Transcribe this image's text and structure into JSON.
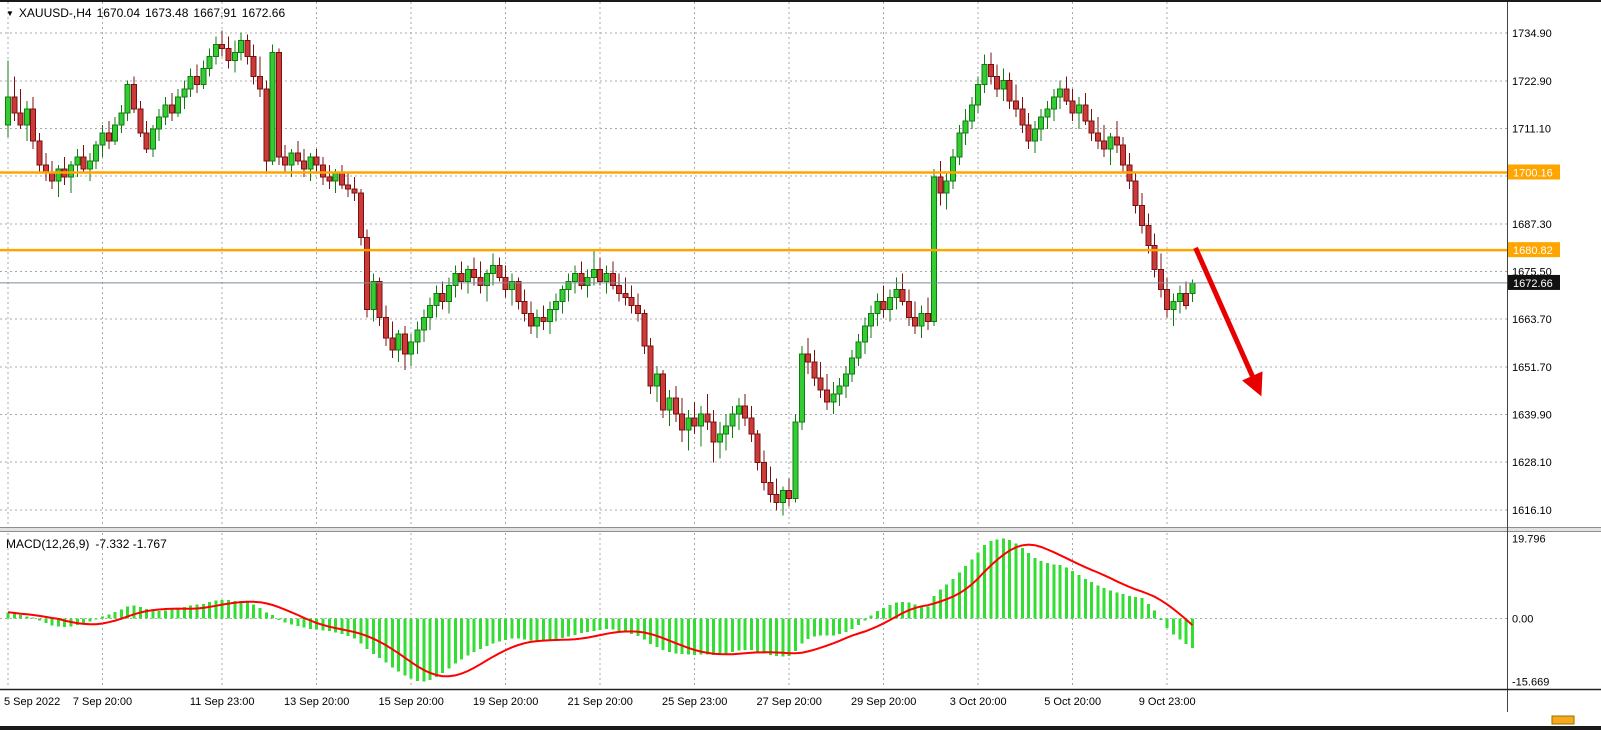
{
  "header": {
    "symbol_timeframe": "XAUUSD-,H4",
    "open": "1670.04",
    "high": "1673.48",
    "low": "1667.91",
    "close": "1672.66"
  },
  "macd_header": {
    "name": "MACD(12,26,9)",
    "values": "-7.332 -1.767"
  },
  "colors": {
    "bull_fill": "#33cc33",
    "bull_stroke": "#117a11",
    "bear_fill": "#cc3a3a",
    "bear_stroke": "#7a1111",
    "macd_histogram": "#33dd33",
    "macd_signal": "#ff0000",
    "hline": "#ffa500",
    "current_price_line": "#7d8b97",
    "grid": "#a8a8a8",
    "arrow": "#e80000",
    "axis_text": "#000000",
    "label_box_dark": "#111111"
  },
  "chart_data": {
    "type": "candlestick",
    "symbol": "XAUUSD-",
    "timeframe": "H4",
    "last_ohlc": {
      "open": 1670.04,
      "high": 1673.48,
      "low": 1667.91,
      "close": 1672.66
    },
    "price_axis": {
      "max": 1742.6,
      "min": 1611.9,
      "grid_prices": [
        1734.9,
        1722.9,
        1711.1,
        1699.3,
        1687.3,
        1675.5,
        1663.7,
        1651.7,
        1639.9,
        1628.1,
        1616.1
      ],
      "axis_label_prices": [
        1734.9,
        1722.9,
        1711.1,
        1687.3,
        1675.5,
        1663.7,
        1651.7,
        1639.9,
        1628.1,
        1616.1
      ]
    },
    "time_axis": [
      {
        "index": 0,
        "label": "5 Sep 2022"
      },
      {
        "index": 15,
        "label": "7 Sep 20:00"
      },
      {
        "index": 34,
        "label": "11 Sep 23:00"
      },
      {
        "index": 49,
        "label": "13 Sep 20:00"
      },
      {
        "index": 64,
        "label": "15 Sep 20:00"
      },
      {
        "index": 79,
        "label": "19 Sep 20:00"
      },
      {
        "index": 94,
        "label": "21 Sep 20:00"
      },
      {
        "index": 109,
        "label": "25 Sep 23:00"
      },
      {
        "index": 124,
        "label": "27 Sep 20:00"
      },
      {
        "index": 139,
        "label": "29 Sep 20:00"
      },
      {
        "index": 154,
        "label": "3 Oct 20:00"
      },
      {
        "index": 169,
        "label": "5 Oct 20:00"
      },
      {
        "index": 184,
        "label": "9 Oct 23:00"
      }
    ],
    "horizontal_lines": [
      {
        "price": 1700.16,
        "label": "1700.16"
      },
      {
        "price": 1680.82,
        "label": "1680.82"
      }
    ],
    "current_price": {
      "price": 1672.66,
      "label": "1672.66"
    },
    "trend_arrow": {
      "from": {
        "index": 188.5,
        "price": 1681.4
      },
      "to": {
        "index": 198.5,
        "price": 1646.0
      }
    },
    "candles": [
      [
        1712,
        1728,
        1709,
        1719
      ],
      [
        1719,
        1724,
        1713,
        1715
      ],
      [
        1715,
        1721,
        1711,
        1712
      ],
      [
        1712,
        1718,
        1708,
        1716
      ],
      [
        1716,
        1719,
        1706,
        1708
      ],
      [
        1708,
        1710,
        1700,
        1702
      ],
      [
        1702,
        1705,
        1698,
        1700
      ],
      [
        1700,
        1703,
        1696,
        1698
      ],
      [
        1698,
        1702,
        1694,
        1701
      ],
      [
        1701,
        1704,
        1697,
        1699
      ],
      [
        1699,
        1703,
        1695,
        1702
      ],
      [
        1702,
        1706,
        1699,
        1704
      ],
      [
        1704,
        1707,
        1700,
        1701
      ],
      [
        1701,
        1705,
        1698,
        1703
      ],
      [
        1703,
        1708,
        1701,
        1707
      ],
      [
        1707,
        1712,
        1704,
        1710
      ],
      [
        1710,
        1713,
        1706,
        1708
      ],
      [
        1708,
        1714,
        1707,
        1712
      ],
      [
        1712,
        1717,
        1710,
        1715
      ],
      [
        1715,
        1723,
        1713,
        1722
      ],
      [
        1722,
        1724,
        1715,
        1716
      ],
      [
        1716,
        1718,
        1709,
        1710
      ],
      [
        1710,
        1713,
        1705,
        1706
      ],
      [
        1706,
        1712,
        1704,
        1711
      ],
      [
        1711,
        1716,
        1708,
        1714
      ],
      [
        1714,
        1719,
        1712,
        1717
      ],
      [
        1717,
        1720,
        1713,
        1715
      ],
      [
        1715,
        1721,
        1714,
        1719
      ],
      [
        1719,
        1723,
        1716,
        1721
      ],
      [
        1721,
        1726,
        1719,
        1724
      ],
      [
        1724,
        1727,
        1720,
        1722
      ],
      [
        1722,
        1728,
        1721,
        1726
      ],
      [
        1726,
        1731,
        1724,
        1729
      ],
      [
        1729,
        1734,
        1727,
        1732
      ],
      [
        1732,
        1735.5,
        1729,
        1731
      ],
      [
        1731,
        1734,
        1726,
        1728
      ],
      [
        1728,
        1733,
        1725,
        1730
      ],
      [
        1730,
        1735,
        1728,
        1733
      ],
      [
        1733,
        1734.5,
        1727,
        1729
      ],
      [
        1729,
        1732,
        1722,
        1724
      ],
      [
        1724,
        1729,
        1719,
        1721
      ],
      [
        1721,
        1723,
        1700,
        1703
      ],
      [
        1703,
        1732,
        1702,
        1730
      ],
      [
        1730,
        1731,
        1702,
        1704
      ],
      [
        1704,
        1707,
        1700,
        1702
      ],
      [
        1702,
        1706,
        1699,
        1705
      ],
      [
        1705,
        1708,
        1702,
        1703
      ],
      [
        1703,
        1706,
        1699,
        1701
      ],
      [
        1701,
        1705,
        1698,
        1704
      ],
      [
        1704,
        1706,
        1700,
        1702
      ],
      [
        1702,
        1704,
        1697,
        1699
      ],
      [
        1699,
        1702,
        1696,
        1698
      ],
      [
        1698,
        1701,
        1695,
        1700
      ],
      [
        1700,
        1702,
        1696,
        1697
      ],
      [
        1697,
        1700,
        1694,
        1696
      ],
      [
        1696,
        1699,
        1693,
        1695
      ],
      [
        1695,
        1696,
        1682,
        1684
      ],
      [
        1684,
        1686,
        1664,
        1666
      ],
      [
        1666,
        1675,
        1663,
        1673
      ],
      [
        1673,
        1674,
        1662,
        1664
      ],
      [
        1664,
        1667,
        1657,
        1659
      ],
      [
        1659,
        1663,
        1654,
        1656
      ],
      [
        1656,
        1661,
        1653,
        1660
      ],
      [
        1660,
        1662,
        1651,
        1655
      ],
      [
        1655,
        1660,
        1652,
        1658
      ],
      [
        1658,
        1663,
        1655,
        1661
      ],
      [
        1661,
        1666,
        1658,
        1664
      ],
      [
        1664,
        1669,
        1661,
        1667
      ],
      [
        1667,
        1672,
        1664,
        1670
      ],
      [
        1670,
        1673,
        1666,
        1668
      ],
      [
        1668,
        1674,
        1665,
        1672
      ],
      [
        1672,
        1677,
        1669,
        1675
      ],
      [
        1675,
        1678,
        1671,
        1673
      ],
      [
        1673,
        1677,
        1670,
        1676
      ],
      [
        1676,
        1679,
        1672,
        1674
      ],
      [
        1674,
        1678,
        1670,
        1672
      ],
      [
        1672,
        1676,
        1668,
        1675
      ],
      [
        1675,
        1680,
        1672,
        1677
      ],
      [
        1677,
        1679,
        1673,
        1674
      ],
      [
        1674,
        1677,
        1669,
        1671
      ],
      [
        1671,
        1675,
        1667,
        1673
      ],
      [
        1673,
        1674,
        1666,
        1668
      ],
      [
        1668,
        1671,
        1663,
        1665
      ],
      [
        1665,
        1668,
        1660,
        1662
      ],
      [
        1662,
        1666,
        1659,
        1664
      ],
      [
        1664,
        1667,
        1661,
        1663
      ],
      [
        1663,
        1668,
        1660,
        1666
      ],
      [
        1666,
        1670,
        1663,
        1668
      ],
      [
        1668,
        1672,
        1665,
        1671
      ],
      [
        1671,
        1675,
        1668,
        1673
      ],
      [
        1673,
        1677,
        1670,
        1675
      ],
      [
        1675,
        1678,
        1671,
        1672
      ],
      [
        1672,
        1676,
        1669,
        1674
      ],
      [
        1674,
        1681,
        1672,
        1676
      ],
      [
        1676,
        1679,
        1672,
        1673
      ],
      [
        1673,
        1677,
        1670,
        1675
      ],
      [
        1675,
        1678,
        1671,
        1672
      ],
      [
        1672,
        1675,
        1668,
        1670
      ],
      [
        1670,
        1674,
        1667,
        1669
      ],
      [
        1669,
        1672,
        1665,
        1667
      ],
      [
        1667,
        1670,
        1663,
        1665
      ],
      [
        1665,
        1666,
        1655,
        1657
      ],
      [
        1657,
        1659,
        1645,
        1647
      ],
      [
        1647,
        1652,
        1643,
        1650
      ],
      [
        1650,
        1651,
        1639,
        1641
      ],
      [
        1641,
        1646,
        1637,
        1644
      ],
      [
        1644,
        1647,
        1638,
        1640
      ],
      [
        1640,
        1644,
        1633,
        1636
      ],
      [
        1636,
        1641,
        1631,
        1639
      ],
      [
        1639,
        1643,
        1635,
        1637
      ],
      [
        1637,
        1642,
        1632,
        1640
      ],
      [
        1640,
        1645,
        1636,
        1638
      ],
      [
        1638,
        1641,
        1628,
        1633
      ],
      [
        1633,
        1638,
        1629,
        1635
      ],
      [
        1635,
        1640,
        1631,
        1637
      ],
      [
        1637,
        1642,
        1634,
        1640
      ],
      [
        1640,
        1644,
        1636,
        1642
      ],
      [
        1642,
        1645,
        1637,
        1639
      ],
      [
        1639,
        1642,
        1633,
        1635
      ],
      [
        1635,
        1636,
        1626,
        1628
      ],
      [
        1628,
        1631,
        1621,
        1623
      ],
      [
        1623,
        1627,
        1618,
        1620
      ],
      [
        1620,
        1624,
        1616,
        1618
      ],
      [
        1618,
        1622,
        1614.8,
        1621
      ],
      [
        1621,
        1624,
        1617,
        1619
      ],
      [
        1619,
        1640,
        1618,
        1638
      ],
      [
        1638,
        1657,
        1636,
        1655
      ],
      [
        1655,
        1659,
        1650,
        1653
      ],
      [
        1653,
        1656,
        1647,
        1649
      ],
      [
        1649,
        1653,
        1644,
        1646
      ],
      [
        1646,
        1650,
        1641,
        1643
      ],
      [
        1643,
        1648,
        1640,
        1645
      ],
      [
        1645,
        1649,
        1642,
        1647
      ],
      [
        1647,
        1652,
        1644,
        1650
      ],
      [
        1650,
        1656,
        1648,
        1654
      ],
      [
        1654,
        1660,
        1652,
        1658
      ],
      [
        1658,
        1664,
        1655,
        1662
      ],
      [
        1662,
        1667,
        1659,
        1665
      ],
      [
        1665,
        1670,
        1662,
        1668
      ],
      [
        1668,
        1672,
        1664,
        1666
      ],
      [
        1666,
        1671,
        1663,
        1669
      ],
      [
        1669,
        1674,
        1666,
        1671
      ],
      [
        1671,
        1675,
        1667,
        1668
      ],
      [
        1668,
        1671,
        1662,
        1664
      ],
      [
        1664,
        1668,
        1660,
        1662
      ],
      [
        1662,
        1667,
        1659,
        1665
      ],
      [
        1665,
        1669,
        1661,
        1663
      ],
      [
        1663,
        1701,
        1662,
        1699
      ],
      [
        1699,
        1703,
        1692,
        1695
      ],
      [
        1695,
        1700,
        1691,
        1698
      ],
      [
        1698,
        1706,
        1696,
        1704
      ],
      [
        1704,
        1712,
        1702,
        1710
      ],
      [
        1710,
        1716,
        1707,
        1713
      ],
      [
        1713,
        1719,
        1711,
        1717
      ],
      [
        1717,
        1724,
        1715,
        1722
      ],
      [
        1722,
        1729.5,
        1720,
        1727
      ],
      [
        1727,
        1730,
        1722,
        1724
      ],
      [
        1724,
        1727,
        1719,
        1721
      ],
      [
        1721,
        1726,
        1718,
        1723
      ],
      [
        1723,
        1725,
        1716,
        1718
      ],
      [
        1718,
        1722,
        1714,
        1716
      ],
      [
        1716,
        1719,
        1710,
        1712
      ],
      [
        1712,
        1715,
        1706,
        1708
      ],
      [
        1708,
        1713,
        1705,
        1711
      ],
      [
        1711,
        1716,
        1708,
        1714
      ],
      [
        1714,
        1718,
        1711,
        1716
      ],
      [
        1716,
        1721,
        1713,
        1719
      ],
      [
        1719,
        1723,
        1716,
        1721
      ],
      [
        1721,
        1724,
        1717,
        1718
      ],
      [
        1718,
        1721,
        1713,
        1715
      ],
      [
        1715,
        1719,
        1711,
        1717
      ],
      [
        1717,
        1720,
        1712,
        1713
      ],
      [
        1713,
        1716,
        1708,
        1710
      ],
      [
        1710,
        1714,
        1706,
        1708
      ],
      [
        1708,
        1712,
        1704,
        1706
      ],
      [
        1706,
        1710,
        1702,
        1709
      ],
      [
        1709,
        1713,
        1705,
        1707
      ],
      [
        1707,
        1709,
        1700,
        1702
      ],
      [
        1702,
        1705,
        1696,
        1698
      ],
      [
        1698,
        1700,
        1690,
        1692
      ],
      [
        1692,
        1695,
        1685,
        1687
      ],
      [
        1687,
        1690,
        1680,
        1682
      ],
      [
        1682,
        1685,
        1674,
        1676
      ],
      [
        1676,
        1680,
        1669,
        1671
      ],
      [
        1671,
        1674,
        1664,
        1666
      ],
      [
        1666,
        1670,
        1662,
        1668
      ],
      [
        1668,
        1672,
        1665,
        1670
      ],
      [
        1670,
        1673,
        1666,
        1667
      ],
      [
        1670.04,
        1673.48,
        1667.91,
        1672.66
      ]
    ],
    "macd": {
      "parameters": [
        12,
        26,
        9
      ],
      "main_value": -7.332,
      "signal_value": -1.767,
      "signal_period": 9,
      "axis_labels": [
        19.796,
        0,
        -15.669
      ],
      "grid_values": [
        0
      ],
      "range": {
        "max": 21.2,
        "min": -17.3
      },
      "histogram": [
        1.5,
        1.2,
        0.8,
        0.5,
        0.2,
        -0.5,
        -1.2,
        -1.8,
        -2.0,
        -2.2,
        -2.0,
        -1.6,
        -1.2,
        -0.8,
        -0.3,
        0.4,
        1.0,
        1.6,
        2.2,
        3.0,
        3.2,
        2.8,
        2.3,
        1.9,
        1.8,
        2.0,
        2.2,
        2.5,
        2.8,
        3.2,
        3.4,
        3.6,
        4.0,
        4.4,
        4.6,
        4.5,
        4.3,
        4.3,
        4.0,
        3.4,
        2.6,
        1.4,
        0.8,
        -0.4,
        -1.0,
        -1.5,
        -1.9,
        -2.3,
        -2.6,
        -2.8,
        -3.0,
        -3.2,
        -3.5,
        -3.9,
        -4.4,
        -5.0,
        -6.2,
        -7.6,
        -8.8,
        -9.8,
        -11.0,
        -12.2,
        -13.2,
        -14.2,
        -15.0,
        -15.5,
        -15.669,
        -15.3,
        -14.6,
        -13.6,
        -12.4,
        -11.2,
        -10.2,
        -9.2,
        -8.4,
        -7.6,
        -6.9,
        -6.3,
        -5.8,
        -5.4,
        -5.0,
        -5.0,
        -5.2,
        -5.5,
        -5.7,
        -5.8,
        -5.6,
        -5.3,
        -4.9,
        -4.5,
        -4.1,
        -3.7,
        -3.4,
        -3.1,
        -2.9,
        -2.7,
        -2.8,
        -3.1,
        -3.5,
        -3.9,
        -4.4,
        -5.3,
        -6.4,
        -7.1,
        -7.9,
        -8.3,
        -8.7,
        -8.9,
        -9.0,
        -9.1,
        -9.0,
        -9.0,
        -9.1,
        -8.9,
        -8.7,
        -8.4,
        -8.0,
        -7.8,
        -7.9,
        -8.3,
        -8.7,
        -9.1,
        -9.4,
        -9.5,
        -9.4,
        -8.1,
        -6.3,
        -5.1,
        -4.5,
        -4.3,
        -4.3,
        -4.2,
        -3.9,
        -3.4,
        -2.6,
        -1.6,
        -0.5,
        0.7,
        1.8,
        2.6,
        3.3,
        3.9,
        4.1,
        3.9,
        3.5,
        3.2,
        3.0,
        5.6,
        7.2,
        8.4,
        9.8,
        11.4,
        13.0,
        14.6,
        16.4,
        18.2,
        19.2,
        19.6,
        19.796,
        19.4,
        18.6,
        17.5,
        16.2,
        15.0,
        14.2,
        13.7,
        13.4,
        13.2,
        12.6,
        11.7,
        10.8,
        9.8,
        9.0,
        8.2,
        7.5,
        6.9,
        6.4,
        6.0,
        5.6,
        5.3,
        5.0,
        3.6,
        2.0,
        -0.4,
        -2.4,
        -4.0,
        -5.2,
        -6.4,
        -7.332
      ]
    }
  }
}
